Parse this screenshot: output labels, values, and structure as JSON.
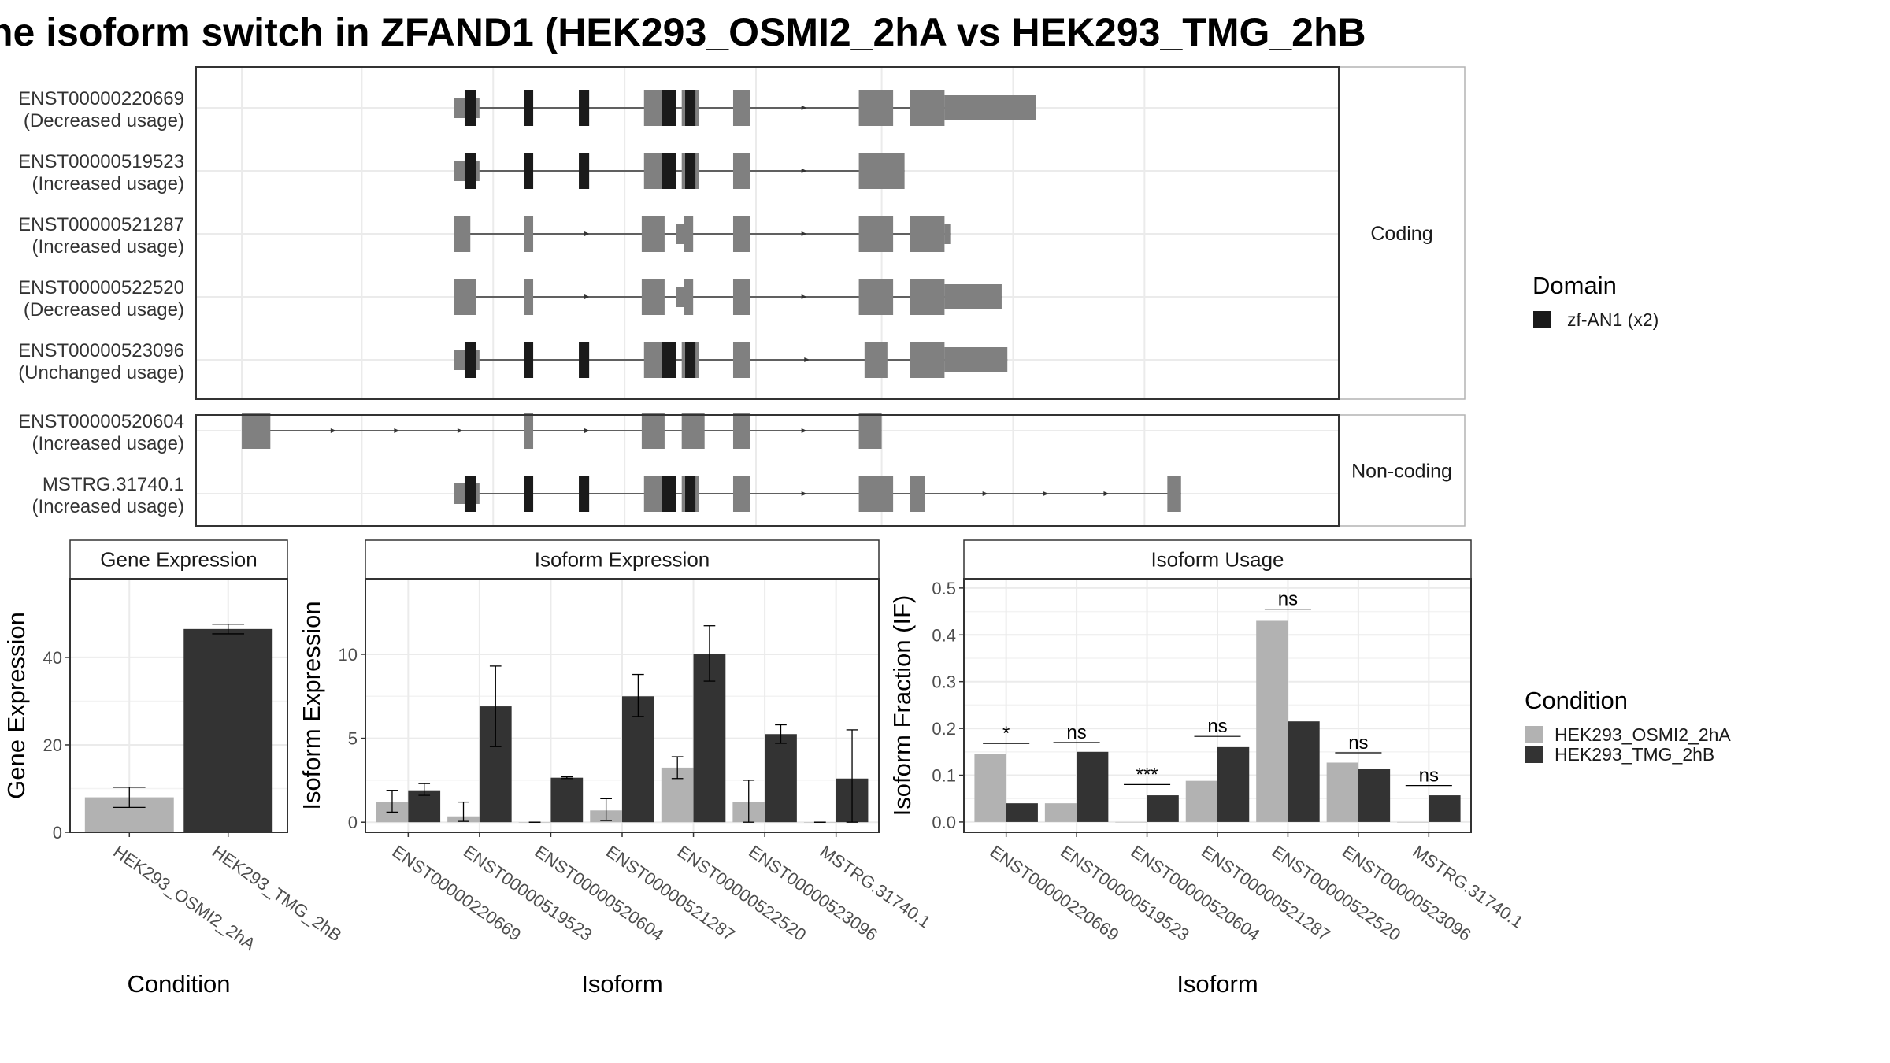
{
  "title": "he isoform switch in ZFAND1 (HEK293_OSMI2_2hA vs HEK293_TMG_2hB",
  "colors": {
    "exon": "#808080",
    "domain": "#1a1a1a",
    "cond_a": "#b2b2b2",
    "cond_b": "#333333",
    "grid": "#ebebeb",
    "panel_border": "#333333"
  },
  "structure": {
    "facets": {
      "coding": "Coding",
      "noncoding": "Non-coding"
    },
    "domain_legend": {
      "title": "Domain",
      "item": "zf-AN1 (x2)"
    },
    "isoforms": [
      {
        "id": "ENST00000220669",
        "usage": "(Decreased usage)",
        "group": "coding",
        "exons": [
          [
            0.226,
            0.248,
            "t"
          ],
          [
            0.287,
            0.295,
            "f"
          ],
          [
            0.335,
            0.341,
            "f"
          ],
          [
            0.392,
            0.41,
            "f"
          ],
          [
            0.425,
            0.44,
            "f"
          ],
          [
            0.47,
            0.485,
            "f"
          ],
          [
            0.58,
            0.61,
            "f"
          ],
          [
            0.625,
            0.655,
            "f"
          ],
          [
            0.655,
            0.735,
            "w"
          ]
        ],
        "domains": [
          [
            0.235,
            0.245
          ],
          [
            0.287,
            0.295
          ],
          [
            0.335,
            0.344
          ],
          [
            0.408,
            0.42
          ],
          [
            0.428,
            0.437
          ]
        ]
      },
      {
        "id": "ENST00000519523",
        "usage": "(Increased usage)",
        "group": "coding",
        "exons": [
          [
            0.226,
            0.248,
            "t"
          ],
          [
            0.287,
            0.295,
            "f"
          ],
          [
            0.335,
            0.341,
            "f"
          ],
          [
            0.392,
            0.41,
            "f"
          ],
          [
            0.425,
            0.44,
            "f"
          ],
          [
            0.47,
            0.485,
            "f"
          ],
          [
            0.58,
            0.62,
            "f"
          ]
        ],
        "domains": [
          [
            0.235,
            0.245
          ],
          [
            0.287,
            0.295
          ],
          [
            0.335,
            0.344
          ],
          [
            0.408,
            0.42
          ],
          [
            0.428,
            0.437
          ]
        ]
      },
      {
        "id": "ENST00000521287",
        "usage": "(Increased usage)",
        "group": "coding",
        "exons": [
          [
            0.226,
            0.24,
            "f"
          ],
          [
            0.287,
            0.295,
            "f"
          ],
          [
            0.39,
            0.41,
            "f"
          ],
          [
            0.42,
            0.427,
            "t"
          ],
          [
            0.427,
            0.435,
            "f"
          ],
          [
            0.47,
            0.485,
            "f"
          ],
          [
            0.58,
            0.61,
            "f"
          ],
          [
            0.625,
            0.655,
            "f"
          ],
          [
            0.655,
            0.66,
            "t"
          ]
        ],
        "domains": []
      },
      {
        "id": "ENST00000522520",
        "usage": "(Decreased usage)",
        "group": "coding",
        "exons": [
          [
            0.226,
            0.245,
            "f"
          ],
          [
            0.287,
            0.295,
            "f"
          ],
          [
            0.39,
            0.41,
            "f"
          ],
          [
            0.42,
            0.427,
            "t"
          ],
          [
            0.427,
            0.435,
            "f"
          ],
          [
            0.47,
            0.485,
            "f"
          ],
          [
            0.58,
            0.61,
            "f"
          ],
          [
            0.625,
            0.655,
            "f"
          ],
          [
            0.655,
            0.705,
            "w"
          ]
        ],
        "domains": []
      },
      {
        "id": "ENST00000523096",
        "usage": "(Unchanged usage)",
        "group": "coding",
        "exons": [
          [
            0.226,
            0.248,
            "t"
          ],
          [
            0.287,
            0.295,
            "f"
          ],
          [
            0.335,
            0.341,
            "f"
          ],
          [
            0.392,
            0.41,
            "f"
          ],
          [
            0.425,
            0.44,
            "f"
          ],
          [
            0.47,
            0.485,
            "f"
          ],
          [
            0.585,
            0.605,
            "f"
          ],
          [
            0.625,
            0.655,
            "f"
          ],
          [
            0.655,
            0.71,
            "w"
          ]
        ],
        "domains": [
          [
            0.235,
            0.245
          ],
          [
            0.287,
            0.295
          ],
          [
            0.335,
            0.344
          ],
          [
            0.408,
            0.42
          ],
          [
            0.428,
            0.437
          ]
        ]
      },
      {
        "id": "ENST00000520604",
        "usage": "(Increased usage)",
        "group": "noncoding",
        "exons": [
          [
            0.04,
            0.065,
            "f"
          ],
          [
            0.287,
            0.295,
            "f"
          ],
          [
            0.39,
            0.41,
            "f"
          ],
          [
            0.425,
            0.445,
            "f"
          ],
          [
            0.47,
            0.485,
            "f"
          ],
          [
            0.58,
            0.6,
            "f"
          ]
        ],
        "domains": []
      },
      {
        "id": "MSTRG.31740.1",
        "usage": "(Increased usage)",
        "group": "noncoding",
        "exons": [
          [
            0.226,
            0.248,
            "t"
          ],
          [
            0.287,
            0.295,
            "f"
          ],
          [
            0.335,
            0.341,
            "f"
          ],
          [
            0.392,
            0.41,
            "f"
          ],
          [
            0.425,
            0.44,
            "f"
          ],
          [
            0.47,
            0.485,
            "f"
          ],
          [
            0.58,
            0.61,
            "f"
          ],
          [
            0.625,
            0.638,
            "f"
          ],
          [
            0.85,
            0.862,
            "f"
          ]
        ],
        "domains": [
          [
            0.235,
            0.245
          ],
          [
            0.287,
            0.295
          ],
          [
            0.335,
            0.344
          ],
          [
            0.408,
            0.42
          ],
          [
            0.428,
            0.437
          ]
        ]
      }
    ]
  },
  "chart_data": [
    {
      "type": "bar",
      "panel": "Gene Expression",
      "categories": [
        "HEK293_OSMI2_2hA",
        "HEK293_TMG_2hB"
      ],
      "values": [
        8,
        46.5
      ],
      "errors": [
        [
          5.7,
          10.3
        ],
        [
          45.4,
          47.6
        ]
      ],
      "ylim": [
        0,
        58
      ],
      "yticks": [
        0,
        20,
        40
      ],
      "xlabel": "Condition",
      "ylabel": "Gene Expression",
      "colors": [
        "#b2b2b2",
        "#333333"
      ]
    },
    {
      "type": "bar",
      "panel": "Isoform Expression",
      "categories": [
        "ENST00000220669",
        "ENST00000519523",
        "ENST00000520604",
        "ENST00000521287",
        "ENST00000522520",
        "ENST00000523096",
        "MSTRG.31740.1"
      ],
      "series": [
        {
          "name": "HEK293_OSMI2_2hA",
          "values": [
            1.2,
            0.35,
            0.0,
            0.7,
            3.25,
            1.2,
            0.0
          ],
          "errors": [
            [
              0.6,
              1.9
            ],
            [
              0.05,
              1.2
            ],
            [
              0.0,
              0.0
            ],
            [
              0.1,
              1.4
            ],
            [
              2.6,
              3.9
            ],
            [
              0.0,
              2.5
            ],
            [
              0.0,
              0.0
            ]
          ]
        },
        {
          "name": "HEK293_TMG_2hB",
          "values": [
            1.9,
            6.9,
            2.65,
            7.5,
            10.0,
            5.25,
            2.6
          ],
          "errors": [
            [
              1.6,
              2.3
            ],
            [
              4.5,
              9.3
            ],
            [
              2.6,
              2.7
            ],
            [
              6.3,
              8.8
            ],
            [
              8.4,
              11.7
            ],
            [
              4.7,
              5.8
            ],
            [
              0.0,
              5.5
            ]
          ]
        }
      ],
      "ylim": [
        -0.6,
        14.5
      ],
      "yticks": [
        0,
        5,
        10
      ],
      "xlabel": "Isoform",
      "ylabel": "Isoform Expression"
    },
    {
      "type": "bar",
      "panel": "Isoform Usage",
      "categories": [
        "ENST00000220669",
        "ENST00000519523",
        "ENST00000520604",
        "ENST00000521287",
        "ENST00000522520",
        "ENST00000523096",
        "MSTRG.31740.1"
      ],
      "series": [
        {
          "name": "HEK293_OSMI2_2hA",
          "values": [
            0.145,
            0.04,
            0.0,
            0.088,
            0.43,
            0.127,
            0.0
          ]
        },
        {
          "name": "HEK293_TMG_2hB",
          "values": [
            0.04,
            0.15,
            0.057,
            0.16,
            0.215,
            0.113,
            0.057
          ]
        }
      ],
      "significance": [
        "*",
        "ns",
        "***",
        "ns",
        "ns",
        "ns",
        "ns"
      ],
      "sig_y": [
        0.168,
        0.17,
        0.08,
        0.183,
        0.455,
        0.148,
        0.078
      ],
      "ylim": [
        -0.022,
        0.52
      ],
      "yticks": [
        0.0,
        0.1,
        0.2,
        0.3,
        0.4,
        0.5
      ],
      "ytick_labels": [
        "0.0",
        "0.1",
        "0.2",
        "0.3",
        "0.4",
        "0.5"
      ],
      "xlabel": "Isoform",
      "ylabel": "Isoform Fraction (IF)"
    }
  ],
  "condition_legend": {
    "title": "Condition",
    "items": [
      {
        "label": "HEK293_OSMI2_2hA",
        "color": "#b2b2b2"
      },
      {
        "label": "HEK293_TMG_2hB",
        "color": "#333333"
      }
    ]
  }
}
